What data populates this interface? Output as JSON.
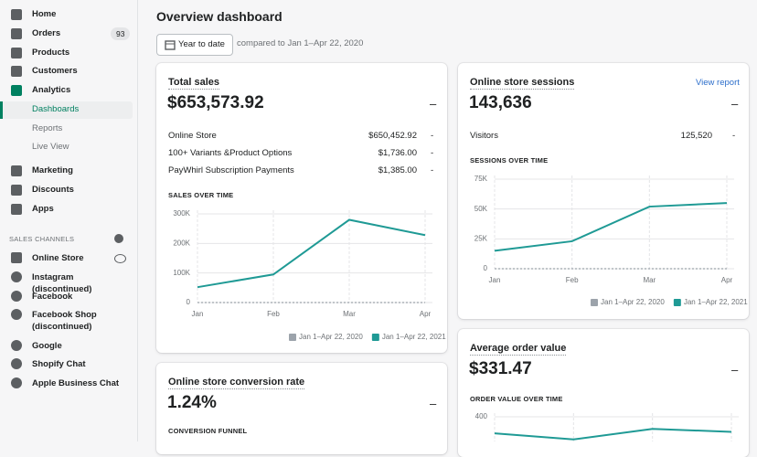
{
  "sidebar": {
    "items": [
      {
        "label": "Home"
      },
      {
        "label": "Orders",
        "badge": "93"
      },
      {
        "label": "Products"
      },
      {
        "label": "Customers"
      },
      {
        "label": "Analytics"
      },
      {
        "label": "Dashboards"
      },
      {
        "label": "Reports"
      },
      {
        "label": "Live View"
      },
      {
        "label": "Marketing"
      },
      {
        "label": "Discounts"
      },
      {
        "label": "Apps"
      }
    ],
    "section_title": "SALES CHANNELS",
    "channels": [
      {
        "label": "Online Store"
      },
      {
        "label": "Instagram (discontinued)"
      },
      {
        "label": "Facebook"
      },
      {
        "label": "Facebook Shop (discontinued)"
      },
      {
        "label": "Google"
      },
      {
        "label": "Shopify Chat"
      },
      {
        "label": "Apple Business Chat"
      }
    ]
  },
  "header": {
    "title": "Overview dashboard",
    "date_button": "Year to date",
    "compare": "compared to Jan 1–Apr 22, 2020"
  },
  "total_sales": {
    "title": "Total sales",
    "value": "$653,573.92",
    "change": "–",
    "rows": [
      {
        "label": "Online Store",
        "value": "$650,452.92",
        "change": "-"
      },
      {
        "label": "100+ Variants &Product Options",
        "value": "$1,736.00",
        "change": "-"
      },
      {
        "label": "PayWhirl Subscription Payments",
        "value": "$1,385.00",
        "change": "-"
      }
    ],
    "chart": {
      "type": "line",
      "title": "SALES OVER TIME",
      "categories": [
        "Jan",
        "Feb",
        "Mar",
        "Apr"
      ],
      "ylim": [
        0,
        300000
      ],
      "yticks": [
        {
          "value": 0,
          "label": "0"
        },
        {
          "value": 100000,
          "label": "100K"
        },
        {
          "value": 200000,
          "label": "200K"
        },
        {
          "value": 300000,
          "label": "300K"
        }
      ],
      "legend": true,
      "series": [
        {
          "name": "Jan 1–Apr 22, 2020",
          "color": "#9ca3ab",
          "values": [
            0,
            0,
            0,
            0
          ]
        },
        {
          "name": "Jan 1–Apr 22, 2021",
          "color": "#1f9a95",
          "values": [
            52000,
            95000,
            280000,
            228000
          ]
        }
      ]
    }
  },
  "sessions": {
    "title": "Online store sessions",
    "link": "View report",
    "value": "143,636",
    "change": "–",
    "rows": [
      {
        "label": "Visitors",
        "value": "125,520",
        "change": "-"
      }
    ],
    "chart": {
      "type": "line",
      "title": "SESSIONS OVER TIME",
      "categories": [
        "Jan",
        "Feb",
        "Mar",
        "Apr"
      ],
      "ylim": [
        0,
        75000
      ],
      "yticks": [
        {
          "value": 0,
          "label": "0"
        },
        {
          "value": 25000,
          "label": "25K"
        },
        {
          "value": 50000,
          "label": "50K"
        },
        {
          "value": 75000,
          "label": "75K"
        }
      ],
      "legend": true,
      "series": [
        {
          "name": "Jan 1–Apr 22, 2020",
          "color": "#9ca3ab",
          "values": [
            0,
            0,
            0,
            0
          ]
        },
        {
          "name": "Jan 1–Apr 22, 2021",
          "color": "#1f9a95",
          "values": [
            15000,
            23000,
            52000,
            55000
          ]
        }
      ]
    }
  },
  "order_value": {
    "title": "Average order value",
    "value": "$331.47",
    "change": "–",
    "chart": {
      "type": "line",
      "title": "ORDER VALUE OVER TIME",
      "ylim": [
        0,
        400
      ],
      "yticks": [
        400
      ],
      "legend": false,
      "series": [
        {
          "name": "Jan 1–Apr 22, 2021",
          "color": "#1f9a95",
          "values": [
            345,
            325,
            360,
            350
          ]
        }
      ]
    }
  },
  "conversion": {
    "title": "Online store conversion rate",
    "value": "1.24%",
    "change": "–",
    "subtitle": "CONVERSION FUNNEL"
  }
}
